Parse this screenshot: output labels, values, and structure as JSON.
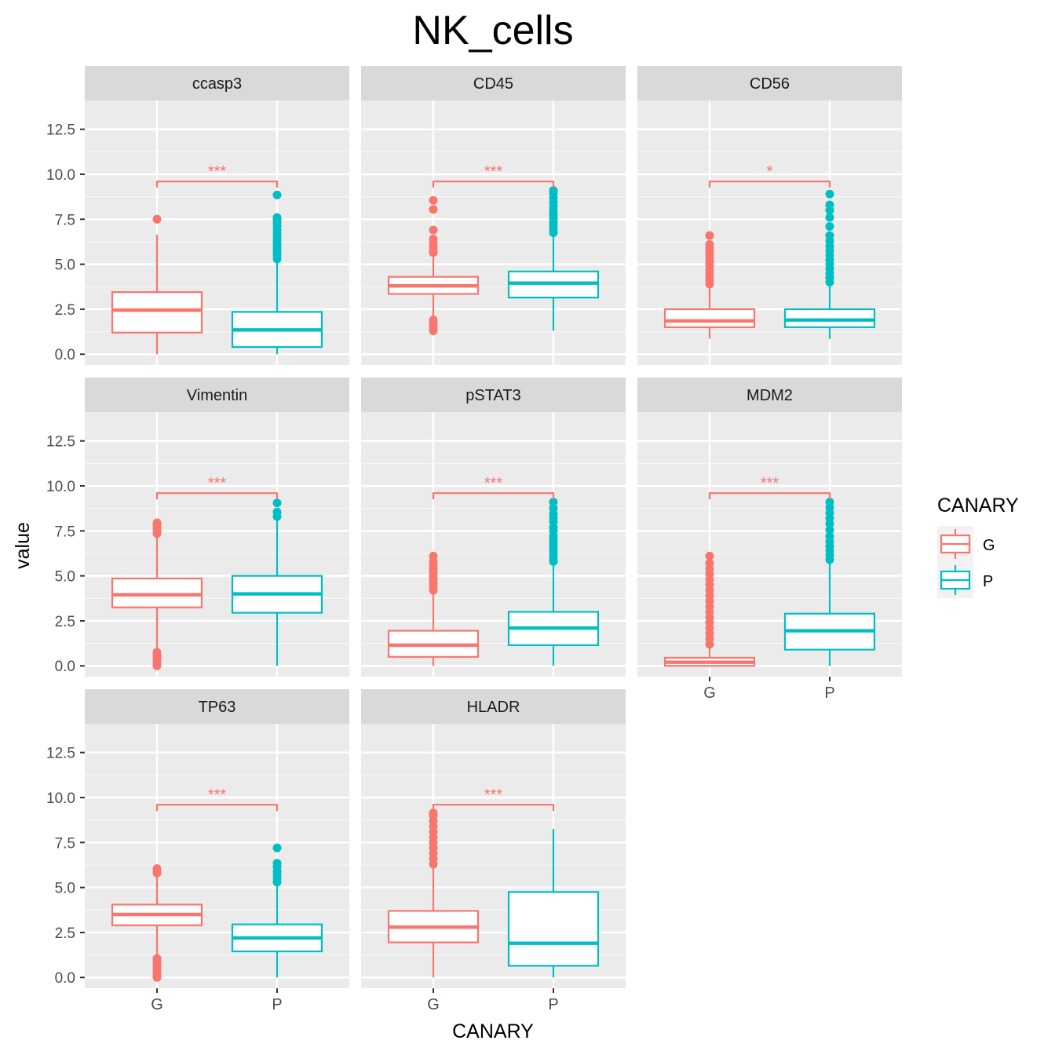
{
  "chart_data": {
    "type": "box",
    "title": "NK_cells",
    "xlabel": "CANARY",
    "ylabel": "value",
    "ylim": [
      -0.6,
      14.1
    ],
    "yticks": [
      "0.0",
      "2.5",
      "5.0",
      "7.5",
      "10.0",
      "12.5"
    ],
    "ytick_values": [
      0,
      2.5,
      5,
      7.5,
      10,
      12.5
    ],
    "categories": [
      "G",
      "P"
    ],
    "grid": true,
    "legend": {
      "title": "CANARY",
      "position": "right",
      "entries": [
        {
          "label": "G",
          "color": "#F8766D"
        },
        {
          "label": "P",
          "color": "#00BFC4"
        }
      ]
    },
    "significance_color": "#F8766D",
    "panels": [
      {
        "name": "ccasp3",
        "sig": "***",
        "bracket_y": 9.6,
        "boxes": [
          {
            "group": "G",
            "min": 0.0,
            "q1": 1.2,
            "median": 2.45,
            "q3": 3.45,
            "max": 6.65,
            "outliers": [
              7.5
            ]
          },
          {
            "group": "P",
            "min": 0.0,
            "q1": 0.4,
            "median": 1.35,
            "q3": 2.35,
            "max": 5.25,
            "outliers": [
              5.3,
              5.5,
              5.7,
              5.9,
              6.1,
              6.3,
              6.5,
              6.7,
              6.9,
              7.1,
              7.3,
              7.5,
              7.6,
              8.85
            ]
          }
        ]
      },
      {
        "name": "CD45",
        "sig": "***",
        "bracket_y": 9.6,
        "boxes": [
          {
            "group": "G",
            "min": 1.25,
            "q1": 3.35,
            "median": 3.8,
            "q3": 4.3,
            "max": 5.6,
            "outliers": [
              1.3,
              1.45,
              1.6,
              1.75,
              1.9,
              5.65,
              5.8,
              6.0,
              6.2,
              6.4,
              6.9,
              8.05,
              8.55
            ]
          },
          {
            "group": "P",
            "min": 1.3,
            "q1": 3.15,
            "median": 3.95,
            "q3": 4.6,
            "max": 6.65,
            "outliers": [
              6.75,
              6.95,
              7.15,
              7.35,
              7.55,
              7.75,
              7.95,
              8.2,
              8.45,
              8.7,
              8.95,
              9.1
            ]
          }
        ]
      },
      {
        "name": "CD56",
        "sig": "*",
        "bracket_y": 9.6,
        "boxes": [
          {
            "group": "G",
            "min": 0.85,
            "q1": 1.5,
            "median": 1.85,
            "q3": 2.5,
            "max": 3.85,
            "outliers": [
              3.9,
              4.1,
              4.3,
              4.5,
              4.7,
              4.9,
              5.1,
              5.3,
              5.5,
              5.7,
              5.9,
              6.1,
              6.6
            ]
          },
          {
            "group": "P",
            "min": 0.85,
            "q1": 1.5,
            "median": 1.9,
            "q3": 2.5,
            "max": 3.95,
            "outliers": [
              4.0,
              4.25,
              4.5,
              4.75,
              5.0,
              5.25,
              5.5,
              5.75,
              6.0,
              6.3,
              6.6,
              7.1,
              7.6,
              8.0,
              8.3,
              8.9
            ]
          }
        ]
      },
      {
        "name": "Vimentin",
        "sig": "***",
        "bracket_y": 9.6,
        "boxes": [
          {
            "group": "G",
            "min": 0.85,
            "q1": 3.25,
            "median": 3.95,
            "q3": 4.85,
            "max": 7.3,
            "outliers": [
              0.0,
              0.15,
              0.3,
              0.45,
              0.6,
              0.75,
              7.35,
              7.5,
              7.65,
              7.8,
              7.95
            ]
          },
          {
            "group": "P",
            "min": 0.0,
            "q1": 2.95,
            "median": 4.0,
            "q3": 5.0,
            "max": 8.15,
            "outliers": [
              8.3,
              8.55,
              9.05
            ]
          }
        ]
      },
      {
        "name": "pSTAT3",
        "sig": "***",
        "bracket_y": 9.6,
        "boxes": [
          {
            "group": "G",
            "min": 0.0,
            "q1": 0.5,
            "median": 1.15,
            "q3": 1.95,
            "max": 4.1,
            "outliers": [
              4.2,
              4.4,
              4.6,
              4.8,
              5.0,
              5.2,
              5.4,
              5.6,
              5.8,
              6.1
            ]
          },
          {
            "group": "P",
            "min": 0.0,
            "q1": 1.15,
            "median": 2.1,
            "q3": 3.0,
            "max": 5.75,
            "outliers": [
              5.8,
              6.0,
              6.2,
              6.4,
              6.6,
              6.8,
              7.0,
              7.2,
              7.5,
              7.7,
              8.0,
              8.2,
              8.45,
              8.75,
              9.1
            ]
          }
        ]
      },
      {
        "name": "MDM2",
        "sig": "***",
        "bracket_y": 9.6,
        "boxes": [
          {
            "group": "G",
            "min": 0.0,
            "q1": 0.0,
            "median": 0.2,
            "q3": 0.45,
            "max": 1.1,
            "outliers": [
              1.2,
              1.5,
              1.8,
              2.1,
              2.4,
              2.7,
              3.0,
              3.3,
              3.6,
              3.9,
              4.2,
              4.5,
              4.8,
              5.1,
              5.4,
              5.7,
              6.1
            ]
          },
          {
            "group": "P",
            "min": 0.0,
            "q1": 0.9,
            "median": 1.95,
            "q3": 2.9,
            "max": 5.85,
            "outliers": [
              5.9,
              6.15,
              6.4,
              6.65,
              6.9,
              7.2,
              7.55,
              7.9,
              8.2,
              8.5,
              8.8,
              9.1
            ]
          }
        ]
      },
      {
        "name": "TP63",
        "sig": "***",
        "bracket_y": 9.6,
        "boxes": [
          {
            "group": "G",
            "min": 0.0,
            "q1": 2.9,
            "median": 3.5,
            "q3": 4.05,
            "max": 5.75,
            "outliers": [
              0.0,
              0.15,
              0.3,
              0.45,
              0.6,
              0.75,
              0.9,
              1.05,
              5.8,
              5.95,
              6.05
            ]
          },
          {
            "group": "P",
            "min": 0.0,
            "q1": 1.45,
            "median": 2.2,
            "q3": 2.95,
            "max": 5.2,
            "outliers": [
              5.3,
              5.5,
              5.7,
              5.9,
              6.15,
              6.35,
              7.2
            ]
          }
        ]
      },
      {
        "name": "HLADR",
        "sig": "***",
        "bracket_y": 9.6,
        "boxes": [
          {
            "group": "G",
            "min": 0.0,
            "q1": 1.95,
            "median": 2.8,
            "q3": 3.7,
            "max": 6.2,
            "outliers": [
              6.3,
              6.6,
              6.9,
              7.2,
              7.5,
              7.8,
              8.1,
              8.4,
              8.7,
              9.0,
              9.15
            ]
          },
          {
            "group": "P",
            "min": 0.0,
            "q1": 0.65,
            "median": 1.9,
            "q3": 4.75,
            "max": 8.25,
            "outliers": []
          }
        ]
      }
    ]
  }
}
